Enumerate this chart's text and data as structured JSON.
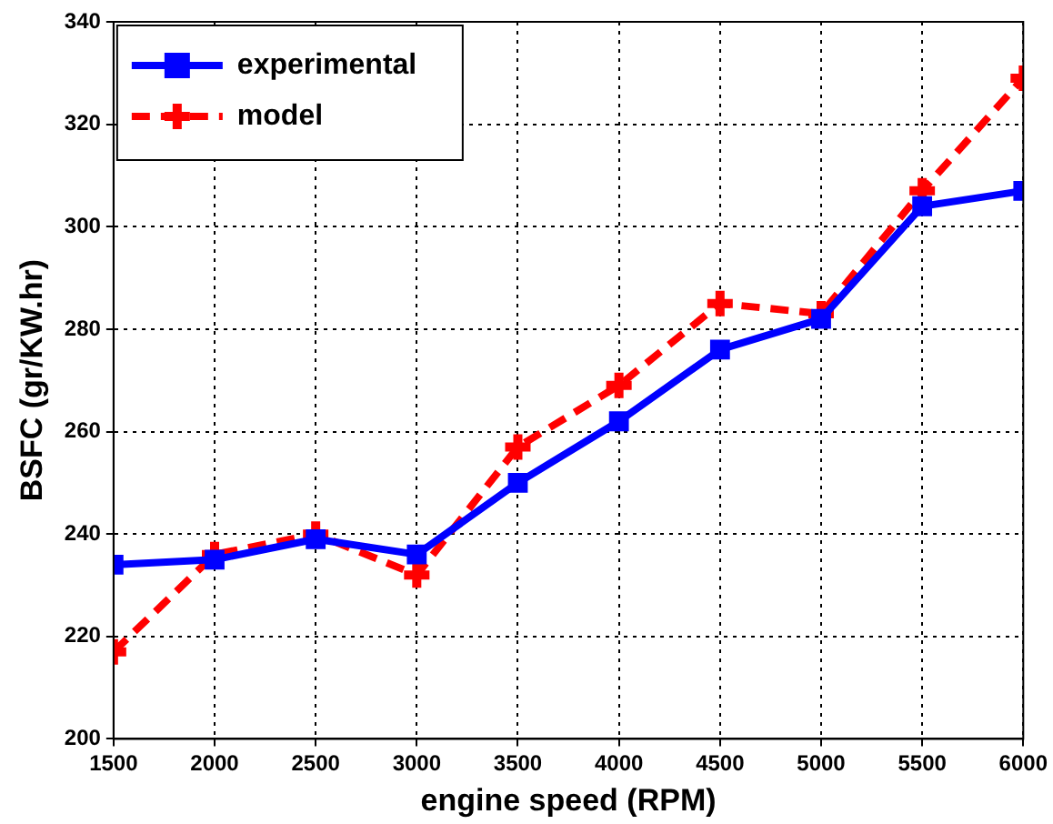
{
  "chart_data": {
    "type": "line",
    "xlabel": "engine speed (RPM)",
    "ylabel": "BSFC (gr/KW.hr)",
    "x": [
      1500,
      2000,
      2500,
      3000,
      3500,
      4000,
      4500,
      5000,
      5500,
      6000
    ],
    "series": [
      {
        "name": "experimental",
        "color": "#0000ff",
        "values": [
          234,
          235,
          239,
          236,
          250,
          262,
          276,
          282,
          304,
          307
        ],
        "marker": "square",
        "line_style": "solid"
      },
      {
        "name": "model",
        "color": "#ff0000",
        "values": [
          217,
          236,
          240,
          232,
          257,
          269,
          285,
          283,
          307,
          329
        ],
        "marker": "cross",
        "line_style": "dashed"
      }
    ],
    "xlim": [
      1500,
      6000
    ],
    "xticks": [
      1500,
      2000,
      2500,
      3000,
      3500,
      4000,
      4500,
      5000,
      5500,
      6000
    ],
    "ylim": [
      200,
      340
    ],
    "yticks": [
      200,
      220,
      240,
      260,
      280,
      300,
      320,
      340
    ],
    "grid": true,
    "legend": "top left"
  }
}
